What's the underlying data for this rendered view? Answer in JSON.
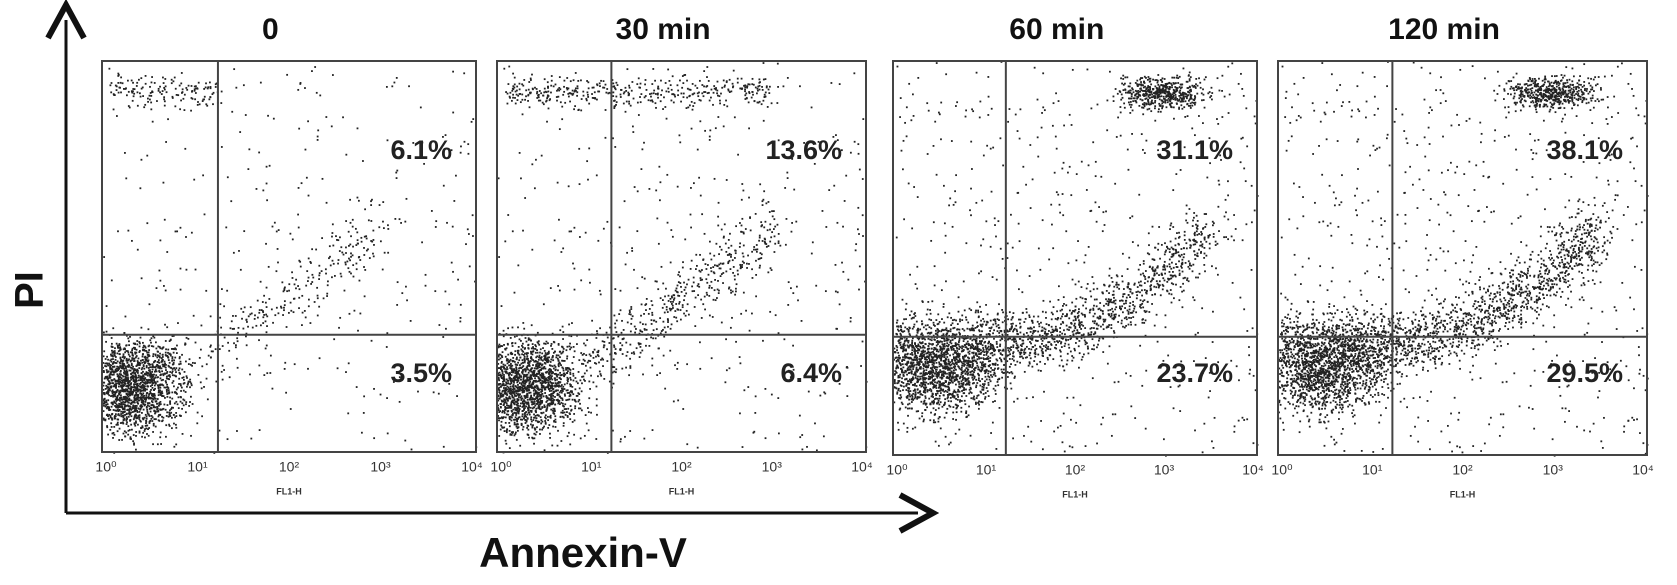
{
  "figure": {
    "y_axis_label": "PI",
    "x_axis_label": "Annexin-V",
    "panels": [
      {
        "title": "0",
        "upper_right": "6.1%",
        "lower_right": "3.5%",
        "x_label": "FL1-H",
        "xticks": [
          "10⁰",
          "10¹",
          "10²",
          "10³",
          "10⁴"
        ]
      },
      {
        "title": "30 min",
        "upper_right": "13.6%",
        "lower_right": "6.4%",
        "x_label": "FL1-H",
        "xticks": [
          "10⁰",
          "10¹",
          "10²",
          "10³",
          "10⁴"
        ]
      },
      {
        "title": "60 min",
        "upper_right": "31.1%",
        "lower_right": "23.7%",
        "x_label": "FL1-H",
        "xticks": [
          "10⁰",
          "10¹",
          "10²",
          "10³",
          "10⁴"
        ]
      },
      {
        "title": "120 min",
        "upper_right": "38.1%",
        "lower_right": "29.5%",
        "x_label": "FL1-H",
        "xticks": [
          "10⁰",
          "10¹",
          "10²",
          "10³",
          "10⁴"
        ]
      }
    ]
  }
}
